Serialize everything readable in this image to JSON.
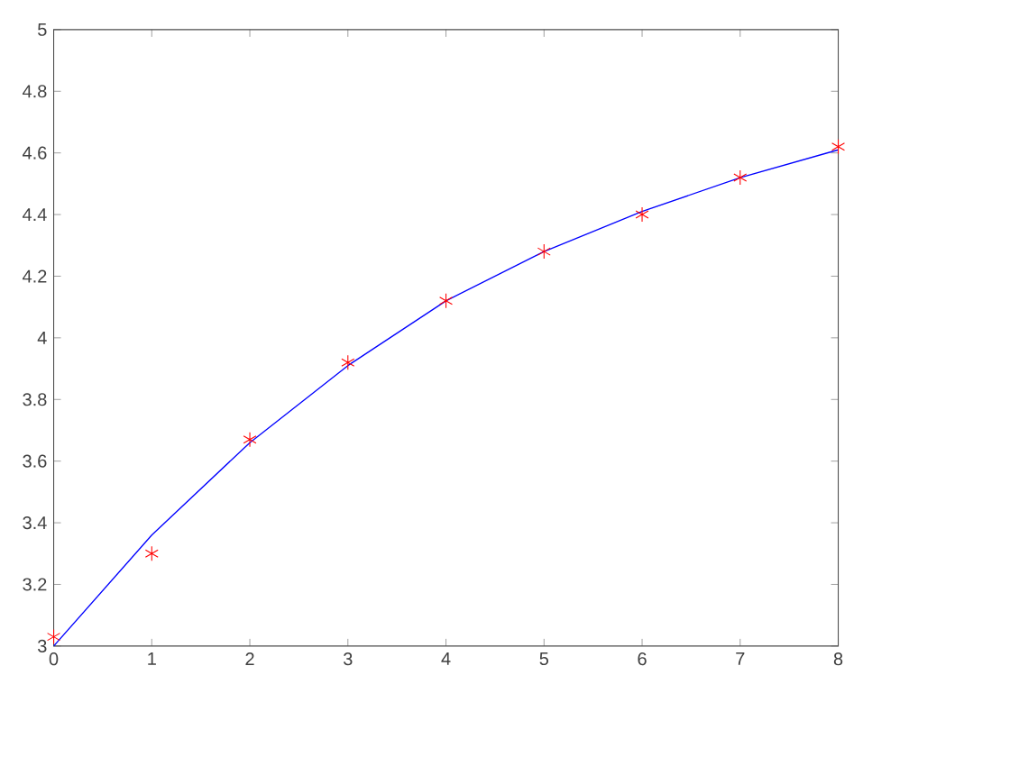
{
  "chart_data": {
    "type": "line",
    "x": [
      0,
      1,
      2,
      3,
      4,
      5,
      6,
      7,
      8
    ],
    "series": [
      {
        "color": "#0000ff",
        "marker": "none",
        "values": [
          3.0,
          3.36,
          3.66,
          3.91,
          4.12,
          4.28,
          4.41,
          4.52,
          4.61
        ]
      },
      {
        "type": "scatter",
        "color": "#ff0000",
        "marker": "cross",
        "values": [
          3.03,
          3.3,
          3.67,
          3.92,
          4.12,
          4.28,
          4.4,
          4.52,
          4.62
        ]
      }
    ],
    "xlim": [
      0,
      8
    ],
    "ylim": [
      3,
      5
    ],
    "xticks": [
      0,
      1,
      2,
      3,
      4,
      5,
      6,
      7,
      8
    ],
    "yticks": [
      3,
      3.2,
      3.4,
      3.6,
      3.8,
      4,
      4.2,
      4.4,
      4.6,
      4.8,
      5
    ]
  }
}
